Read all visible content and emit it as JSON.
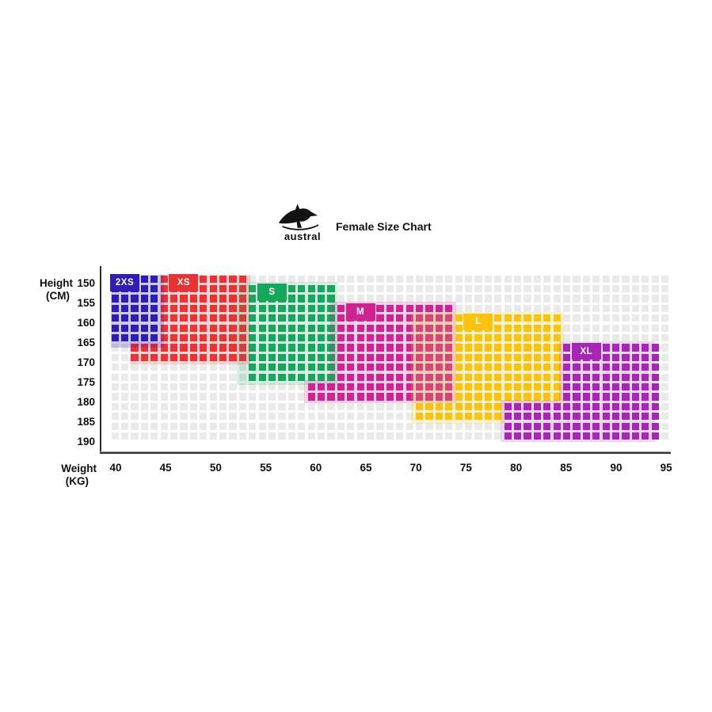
{
  "title": "Female Size Chart",
  "logo": {
    "brand": "austral",
    "icon": "kangaroo-logo-icon"
  },
  "axes": {
    "y_title_line1": "Height",
    "y_title_line2": "(CM)",
    "x_title_line1": "Weight",
    "x_title_line2": "(KG)",
    "y_ticks": [
      "150",
      "155",
      "160",
      "165",
      "170",
      "175",
      "180",
      "185",
      "190"
    ],
    "x_ticks": [
      "40",
      "45",
      "50",
      "55",
      "60",
      "65",
      "70",
      "75",
      "80",
      "85",
      "90",
      "95"
    ]
  },
  "chart_data": {
    "type": "heatmap",
    "title": "Female Size Chart",
    "x_axis": {
      "label": "Weight (KG)",
      "ticks": [
        40,
        45,
        50,
        55,
        60,
        65,
        70,
        75,
        80,
        85,
        90,
        95
      ],
      "range": [
        40,
        96
      ]
    },
    "y_axis": {
      "label": "Height (CM)",
      "ticks": [
        150,
        155,
        160,
        165,
        170,
        175,
        180,
        185,
        190
      ],
      "range": [
        148,
        191
      ]
    },
    "grid": {
      "cols": 57,
      "rows": 17,
      "col0_weight_kg": 40,
      "kg_per_col": 1,
      "row0_height_cm": 149,
      "cm_per_row": 2.5,
      "empty_cell_color": "#EAEAEA"
    },
    "sizes": [
      {
        "label": "2XS",
        "color": "#2D1EB5",
        "weight_range_kg": [
          40,
          45
        ],
        "height_range_cm": [
          148,
          166
        ],
        "cell_rects": [
          {
            "c0": 0,
            "r0": 0,
            "c1": 4,
            "r1": 6
          }
        ],
        "halo_rects": [
          [
            0,
            0,
            5.6,
            7.6
          ]
        ],
        "chip_cell": {
          "c": 0,
          "r": 0
        }
      },
      {
        "label": "XS",
        "color": "#EA3335",
        "weight_range_kg": [
          42,
          54
        ],
        "height_range_cm": [
          148,
          171
        ],
        "cell_rects": [
          {
            "c0": 5,
            "r0": 0,
            "c1": 13,
            "r1": 6
          },
          {
            "c0": 2,
            "r0": 7,
            "c1": 13,
            "r1": 8
          }
        ],
        "halo_rects": [
          [
            5,
            0,
            14.4,
            7.3
          ],
          [
            2,
            6.9,
            14.4,
            9.3
          ]
        ],
        "chip_cell": {
          "c": 6,
          "r": 0
        }
      },
      {
        "label": "S",
        "color": "#18A65D",
        "weight_range_kg": [
          54,
          63
        ],
        "height_range_cm": [
          151,
          176
        ],
        "cell_rects": [
          {
            "c0": 14,
            "r0": 1,
            "c1": 22,
            "r1": 10
          }
        ],
        "halo_rects": [
          [
            12.9,
            0.8,
            23.3,
            11.4
          ]
        ],
        "chip_cell": {
          "c": 15,
          "r": 1
        }
      },
      {
        "label": "M",
        "color": "#CE2492",
        "weight_range_kg": [
          60,
          75
        ],
        "height_range_cm": [
          156,
          181
        ],
        "cell_rects": [
          {
            "c0": 23,
            "r0": 3,
            "c1": 34,
            "r1": 10
          },
          {
            "c0": 20,
            "r0": 11,
            "c1": 34,
            "r1": 12
          }
        ],
        "halo_rects": [
          [
            22.4,
            2.8,
            35.4,
            11.3
          ],
          [
            19.7,
            10.8,
            35.4,
            13.3
          ]
        ],
        "chip_cell": {
          "c": 24,
          "r": 3
        }
      },
      {
        "label": "L",
        "color": "#FAC312",
        "weight_range_kg": [
          71,
          86
        ],
        "height_range_cm": [
          159,
          186
        ],
        "cell_rects": [
          {
            "c0": 35,
            "r0": 4,
            "c1": 45,
            "r1": 12
          },
          {
            "c0": 31,
            "r0": 13,
            "c1": 39,
            "r1": 14
          }
        ],
        "halo_rects": [
          [
            30.6,
            3.8,
            46.3,
            13.3
          ],
          [
            30.6,
            12.8,
            40.4,
            15.4
          ]
        ],
        "chip_cell": {
          "c": 36,
          "r": 4
        }
      },
      {
        "label": "XL",
        "color": "#A826B6",
        "weight_range_kg": [
          80,
          96
        ],
        "height_range_cm": [
          166,
          191
        ],
        "cell_rects": [
          {
            "c0": 46,
            "r0": 7,
            "c1": 55,
            "r1": 12
          },
          {
            "c0": 40,
            "r0": 13,
            "c1": 55,
            "r1": 16
          }
        ],
        "halo_rects": [
          [
            45.7,
            6.8,
            55.6,
            13.3
          ],
          [
            39.7,
            12.8,
            55.6,
            17.2
          ]
        ],
        "chip_cell": {
          "c": 47,
          "r": 7
        }
      }
    ]
  }
}
